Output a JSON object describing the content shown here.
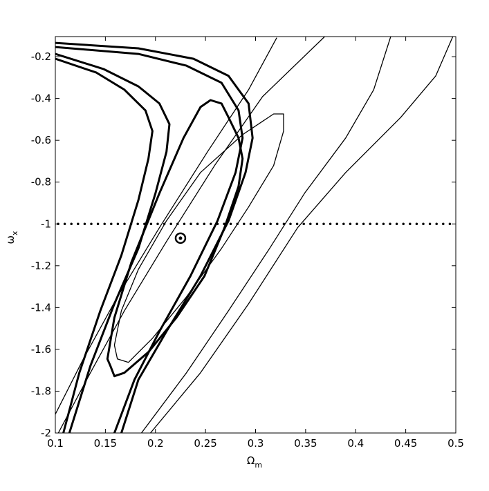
{
  "chart_data": {
    "type": "line",
    "color": "#000000",
    "xlabel": {
      "symbol": "Ω",
      "subscript": "m"
    },
    "ylabel": {
      "symbol": "ω",
      "subscript": "x"
    },
    "xlim": [
      0.1,
      0.5
    ],
    "ylim": [
      -2,
      -0.104
    ],
    "xticks": [
      0.1,
      0.15,
      0.2,
      0.25,
      0.3,
      0.35,
      0.4,
      0.45,
      0.5
    ],
    "yticks": [
      -2,
      -1.8,
      -1.6,
      -1.4,
      -1.2,
      -1,
      -0.8,
      -0.6,
      -0.4,
      -0.2
    ],
    "hline": -1,
    "point": {
      "x": 0.225,
      "y": -1.068
    },
    "series": [
      {
        "linewidth": 1.3,
        "x": [
          0.1,
          0.128,
          0.162,
          0.204,
          0.252,
          0.293,
          0.321
        ],
        "y": [
          -1.91,
          -1.646,
          -1.349,
          -1.018,
          -0.655,
          -0.358,
          -0.111
        ]
      },
      {
        "linewidth": 1.3,
        "x": [
          0.103,
          0.135,
          0.169,
          0.211,
          0.259,
          0.307,
          0.369
        ],
        "y": [
          -2,
          -1.712,
          -1.415,
          -1.084,
          -0.721,
          -0.391,
          -0.104
        ]
      },
      {
        "linewidth": 1.3,
        "x": [
          0.186,
          0.231,
          0.273,
          0.314,
          0.349,
          0.39,
          0.418,
          0.435
        ],
        "y": [
          -2,
          -1.712,
          -1.415,
          -1.117,
          -0.853,
          -0.589,
          -0.358,
          -0.104
        ]
      },
      {
        "linewidth": 1.3,
        "x": [
          0.195,
          0.245,
          0.293,
          0.342,
          0.39,
          0.445,
          0.48,
          0.497
        ],
        "y": [
          -2,
          -1.712,
          -1.382,
          -1.018,
          -0.754,
          -0.49,
          -0.292,
          -0.104
        ]
      },
      {
        "linewidth": 1.3,
        "x": [
          0.162,
          0.159,
          0.166,
          0.183,
          0.211,
          0.245,
          0.287,
          0.318,
          0.328,
          0.328,
          0.318,
          0.293,
          0.266,
          0.231,
          0.197,
          0.173,
          0.162
        ],
        "y": [
          -1.646,
          -1.58,
          -1.415,
          -1.217,
          -0.985,
          -0.754,
          -0.573,
          -0.474,
          -0.474,
          -0.556,
          -0.721,
          -0.919,
          -1.117,
          -1.349,
          -1.547,
          -1.662,
          -1.646
        ]
      },
      {
        "linewidth": 3,
        "x": [
          0.1,
          0.183,
          0.238,
          0.273,
          0.293,
          0.297,
          0.29,
          0.273,
          0.245,
          0.211,
          0.183,
          0.166
        ],
        "y": [
          -0.134,
          -0.16,
          -0.21,
          -0.292,
          -0.424,
          -0.589,
          -0.754,
          -0.985,
          -1.249,
          -1.514,
          -1.745,
          -2
        ]
      },
      {
        "linewidth": 3,
        "x": [
          0.1,
          0.183,
          0.231,
          0.266,
          0.283,
          0.287,
          0.28,
          0.262,
          0.235,
          0.204,
          0.179,
          0.159
        ],
        "y": [
          -0.154,
          -0.187,
          -0.243,
          -0.325,
          -0.457,
          -0.589,
          -0.754,
          -0.985,
          -1.249,
          -1.514,
          -1.745,
          -2
        ]
      },
      {
        "linewidth": 3,
        "x": [
          0.1,
          0.148,
          0.183,
          0.204,
          0.214,
          0.211,
          0.2,
          0.183,
          0.159,
          0.135,
          0.114
        ],
        "y": [
          -0.187,
          -0.259,
          -0.342,
          -0.424,
          -0.523,
          -0.655,
          -0.853,
          -1.117,
          -1.382,
          -1.679,
          -2
        ]
      },
      {
        "linewidth": 3,
        "x": [
          0.1,
          0.141,
          0.169,
          0.19,
          0.197,
          0.193,
          0.183,
          0.166,
          0.145,
          0.124,
          0.108
        ],
        "y": [
          -0.21,
          -0.276,
          -0.358,
          -0.457,
          -0.556,
          -0.688,
          -0.886,
          -1.15,
          -1.415,
          -1.712,
          -2
        ]
      },
      {
        "linewidth": 3,
        "x": [
          0.155,
          0.152,
          0.159,
          0.176,
          0.204,
          0.228,
          0.245,
          0.255,
          0.266,
          0.273,
          0.283,
          0.287,
          0.283,
          0.269,
          0.249,
          0.221,
          0.193,
          0.169,
          0.159,
          0.155
        ],
        "y": [
          -1.679,
          -1.646,
          -1.448,
          -1.183,
          -0.853,
          -0.589,
          -0.441,
          -0.408,
          -0.424,
          -0.49,
          -0.589,
          -0.688,
          -0.82,
          -1.018,
          -1.249,
          -1.448,
          -1.613,
          -1.712,
          -1.728,
          -1.679
        ]
      }
    ]
  }
}
